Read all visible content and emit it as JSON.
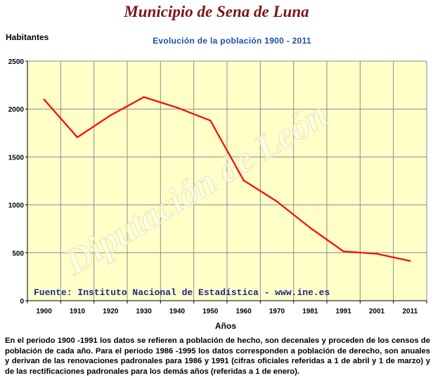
{
  "page": {
    "title": "Municipio de Sena de Luna",
    "ylabel": "Habitantes",
    "subtitle": "Evolución de la población 1900 - 2011",
    "xlabel": "Años",
    "source": "Fuente: Instituto Nacional de Estadística - www.ine.es",
    "watermark": "Diputación de León",
    "note": "En el periodo 1900 -1991 los datos se refieren a población de hecho, son decenales y proceden de los censos de población de cada año. Para el periodo 1986 -1995 los datos corresponden a población de derecho, son anuales y derivan de las renovaciones padronales para 1986 y 1991 (cifras oficiales referidas a 1 de abril y 1 de marzo) y de las rectificaciones padronales para los demás años (referidas a 1 de enero)."
  },
  "colors": {
    "plot_background": "#ffffc8",
    "line": "#ff0000",
    "grid": "#8c8c8c",
    "title": "#7b1518",
    "subtitle": "#1e4fa6",
    "source": "#1a2a8a"
  },
  "chart_data": {
    "type": "line",
    "title": "Evolución de la población 1900 - 2011",
    "xlabel": "Años",
    "ylabel": "Habitantes",
    "categories": [
      "1900",
      "1910",
      "1920",
      "1930",
      "1940",
      "1950",
      "1960",
      "1970",
      "1981",
      "1991",
      "2001",
      "2011"
    ],
    "series": [
      {
        "values": [
          2100,
          1705,
          1935,
          2125,
          2015,
          1880,
          1255,
          1035,
          760,
          515,
          490,
          415
        ]
      }
    ],
    "yticks": [
      "0",
      "500",
      "1000",
      "1500",
      "2000",
      "2500"
    ],
    "ylim": [
      0,
      2500
    ],
    "grid": true,
    "legend": "none"
  }
}
